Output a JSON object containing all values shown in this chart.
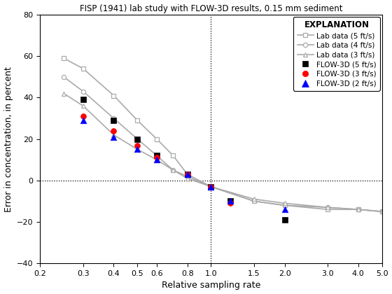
{
  "title": "FISP (1941) lab study with FLOW-3D results, 0.15 mm sediment",
  "xlabel": "Relative sampling rate",
  "ylabel": "Error in concentration, in percent",
  "xlim": [
    0.2,
    5.0
  ],
  "ylim": [
    -40,
    80
  ],
  "yticks": [
    -40,
    -20,
    0,
    20,
    40,
    60,
    80
  ],
  "xticks": [
    0.2,
    0.3,
    0.4,
    0.5,
    0.6,
    0.8,
    1.0,
    1.5,
    2.0,
    3.0,
    4.0,
    5.0
  ],
  "xticklabels": [
    "0.2",
    "0.3",
    "0.4",
    "0.5",
    "0.6",
    "0.8",
    "1.0",
    "1.5",
    "2.0",
    "3.0",
    "4.0",
    "5.0"
  ],
  "vline_x": 1.0,
  "hline_y": 0,
  "lab_color": "#aaaaaa",
  "lab_5fts": {
    "x": [
      0.25,
      0.3,
      0.4,
      0.5,
      0.6,
      0.7,
      0.8,
      1.0,
      1.5,
      2.0,
      3.0,
      4.0,
      5.0
    ],
    "y": [
      59,
      54,
      41,
      29,
      20,
      12,
      3,
      -3,
      -10,
      -12,
      -14,
      -14,
      -15
    ]
  },
  "lab_4fts": {
    "x": [
      0.25,
      0.3,
      0.4,
      0.5,
      0.6,
      0.7,
      0.8,
      1.0,
      1.5,
      2.0,
      3.0,
      4.0,
      5.0
    ],
    "y": [
      50,
      43,
      30,
      20,
      12,
      5,
      2,
      -3,
      -10,
      -12,
      -13,
      -14,
      -15
    ]
  },
  "lab_3fts": {
    "x": [
      0.25,
      0.3,
      0.4,
      0.5,
      0.6,
      0.7,
      0.8,
      1.0,
      1.5,
      2.0,
      3.0,
      4.0,
      5.0
    ],
    "y": [
      42,
      36,
      22,
      15,
      10,
      5,
      1,
      -3,
      -9,
      -11,
      -13,
      -14,
      -15
    ]
  },
  "flow3d_5fts": {
    "x": [
      0.3,
      0.4,
      0.5,
      0.6,
      0.8,
      1.0,
      1.2,
      2.0
    ],
    "y": [
      39,
      29,
      20,
      12,
      3,
      -3,
      -10,
      -19
    ]
  },
  "flow3d_3fts": {
    "x": [
      0.3,
      0.4,
      0.5,
      0.6,
      0.8,
      1.0,
      1.2
    ],
    "y": [
      31,
      24,
      17,
      11,
      3,
      -3,
      -11
    ]
  },
  "flow3d_2fts": {
    "x": [
      0.3,
      0.4,
      0.5,
      0.6,
      0.8,
      1.0,
      1.2,
      2.0
    ],
    "y": [
      29,
      21,
      15,
      10,
      3,
      -3,
      -10,
      -14
    ]
  },
  "legend_title": "EXPLANATION",
  "background_color": "#ffffff"
}
